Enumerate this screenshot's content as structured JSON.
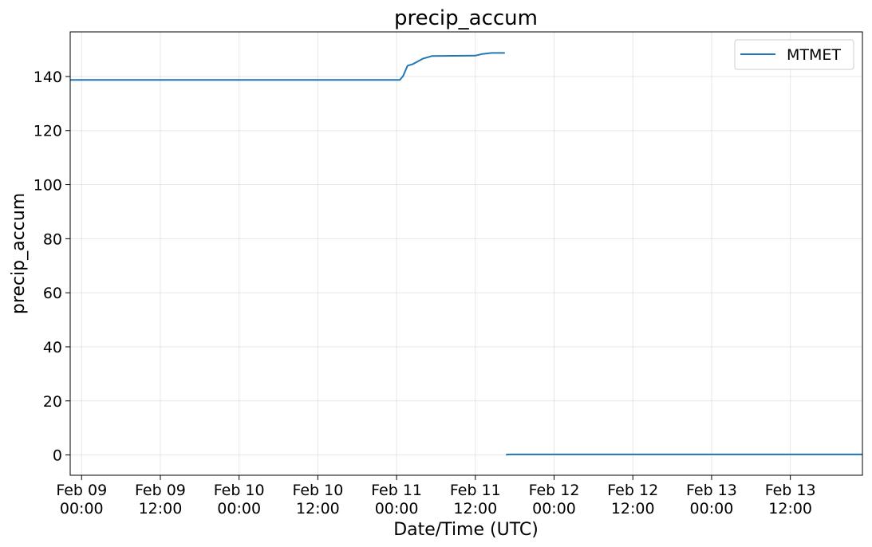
{
  "chart_data": {
    "type": "line",
    "title": "precip_accum",
    "xlabel": "Date/Time (UTC)",
    "ylabel": "precip_accum",
    "ylim": [
      -7.5,
      156.5
    ],
    "xlim": [
      "2024-02-08T22:16",
      "2024-02-13T22:59"
    ],
    "yticks": [
      0,
      20,
      40,
      60,
      80,
      100,
      120,
      140
    ],
    "ytick_labels": [
      "0",
      "20",
      "40",
      "60",
      "80",
      "100",
      "120",
      "140"
    ],
    "xticks": [
      {
        "t": "2024-02-09T00:00",
        "line1": "Feb 09",
        "line2": "00:00"
      },
      {
        "t": "2024-02-09T12:00",
        "line1": "Feb 09",
        "line2": "12:00"
      },
      {
        "t": "2024-02-10T00:00",
        "line1": "Feb 10",
        "line2": "00:00"
      },
      {
        "t": "2024-02-10T12:00",
        "line1": "Feb 10",
        "line2": "12:00"
      },
      {
        "t": "2024-02-11T00:00",
        "line1": "Feb 11",
        "line2": "00:00"
      },
      {
        "t": "2024-02-11T12:00",
        "line1": "Feb 11",
        "line2": "12:00"
      },
      {
        "t": "2024-02-12T00:00",
        "line1": "Feb 12",
        "line2": "00:00"
      },
      {
        "t": "2024-02-12T12:00",
        "line1": "Feb 12",
        "line2": "12:00"
      },
      {
        "t": "2024-02-13T00:00",
        "line1": "Feb 13",
        "line2": "00:00"
      },
      {
        "t": "2024-02-13T12:00",
        "line1": "Feb 13",
        "line2": "12:00"
      }
    ],
    "grid": true,
    "legend_position": "top-right",
    "series": [
      {
        "name": "MTMET",
        "color": "#1f77b4",
        "segments": [
          [
            {
              "t": "2024-02-08T22:16",
              "y": 138.7
            },
            {
              "t": "2024-02-11T00:30",
              "y": 138.7
            },
            {
              "t": "2024-02-11T01:00",
              "y": 140.2
            },
            {
              "t": "2024-02-11T01:40",
              "y": 144.0
            },
            {
              "t": "2024-02-11T02:30",
              "y": 144.6
            },
            {
              "t": "2024-02-11T04:00",
              "y": 146.6
            },
            {
              "t": "2024-02-11T05:25",
              "y": 147.6
            },
            {
              "t": "2024-02-11T12:00",
              "y": 147.7
            },
            {
              "t": "2024-02-11T13:00",
              "y": 148.3
            },
            {
              "t": "2024-02-11T14:30",
              "y": 148.7
            },
            {
              "t": "2024-02-11T16:30",
              "y": 148.7
            }
          ],
          [
            {
              "t": "2024-02-11T16:40",
              "y": 0.1
            },
            {
              "t": "2024-02-11T17:30",
              "y": 0.2
            },
            {
              "t": "2024-02-13T22:55",
              "y": 0.2
            }
          ]
        ]
      }
    ]
  }
}
